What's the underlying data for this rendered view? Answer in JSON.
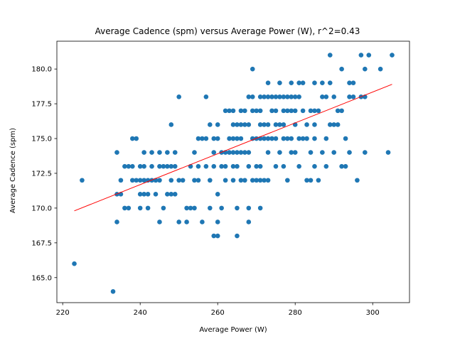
{
  "chart_data": {
    "type": "scatter",
    "title": "Average Cadence (spm) versus Average Power (W), r^2=0.43",
    "xlabel": "Average Power (W)",
    "ylabel": "Average Cadence (spm)",
    "xlim": [
      218.5,
      309.5
    ],
    "ylim": [
      163.2,
      182.0
    ],
    "x_ticks": [
      220,
      240,
      260,
      280,
      300
    ],
    "y_ticks": [
      165.0,
      167.5,
      170.0,
      172.5,
      175.0,
      177.5,
      180.0
    ],
    "x_tick_labels": [
      "220",
      "240",
      "260",
      "280",
      "300"
    ],
    "y_tick_labels": [
      "165.0",
      "167.5",
      "170.0",
      "172.5",
      "175.0",
      "177.5",
      "180.0"
    ],
    "grid": false,
    "legend": "none",
    "colors": {
      "points": "#1f77b4",
      "fit": "#ff0000"
    },
    "fit_line": {
      "x": [
        223,
        305
      ],
      "y": [
        169.8,
        178.9
      ]
    },
    "series": [
      {
        "values": [
          [
            223,
            166
          ],
          [
            225,
            172
          ],
          [
            233,
            164
          ],
          [
            234,
            174
          ],
          [
            234,
            171
          ],
          [
            234,
            169
          ],
          [
            235,
            171
          ],
          [
            235,
            172
          ],
          [
            236,
            173
          ],
          [
            236,
            170
          ],
          [
            237,
            170
          ],
          [
            237,
            173
          ],
          [
            238,
            175
          ],
          [
            238,
            173
          ],
          [
            238,
            172
          ],
          [
            239,
            175
          ],
          [
            239,
            172
          ],
          [
            240,
            173
          ],
          [
            240,
            172
          ],
          [
            240,
            171
          ],
          [
            240,
            170
          ],
          [
            241,
            174
          ],
          [
            241,
            173
          ],
          [
            241,
            172
          ],
          [
            241,
            171
          ],
          [
            242,
            172
          ],
          [
            242,
            170
          ],
          [
            242,
            171
          ],
          [
            243,
            174
          ],
          [
            243,
            173
          ],
          [
            243,
            172
          ],
          [
            244,
            172
          ],
          [
            244,
            171
          ],
          [
            244,
            172
          ],
          [
            245,
            174
          ],
          [
            245,
            173
          ],
          [
            245,
            172
          ],
          [
            245,
            169
          ],
          [
            246,
            173
          ],
          [
            246,
            170
          ],
          [
            247,
            174
          ],
          [
            247,
            173
          ],
          [
            247,
            171
          ],
          [
            248,
            176
          ],
          [
            248,
            173
          ],
          [
            248,
            172
          ],
          [
            248,
            171
          ],
          [
            249,
            174
          ],
          [
            249,
            173
          ],
          [
            249,
            171
          ],
          [
            250,
            178
          ],
          [
            250,
            172
          ],
          [
            250,
            169
          ],
          [
            251,
            172
          ],
          [
            252,
            169
          ],
          [
            252,
            170
          ],
          [
            253,
            170
          ],
          [
            253,
            173
          ],
          [
            254,
            174
          ],
          [
            254,
            172
          ],
          [
            254,
            170
          ],
          [
            255,
            173
          ],
          [
            255,
            172
          ],
          [
            255,
            175
          ],
          [
            256,
            169
          ],
          [
            256,
            175
          ],
          [
            257,
            178
          ],
          [
            257,
            173
          ],
          [
            257,
            175
          ],
          [
            258,
            176
          ],
          [
            258,
            172
          ],
          [
            258,
            170
          ],
          [
            259,
            168
          ],
          [
            259,
            175
          ],
          [
            259,
            174
          ],
          [
            259,
            173
          ],
          [
            260,
            168
          ],
          [
            260,
            171
          ],
          [
            260,
            169
          ],
          [
            260,
            176
          ],
          [
            260,
            175
          ],
          [
            261,
            174
          ],
          [
            261,
            173
          ],
          [
            261,
            170
          ],
          [
            262,
            177
          ],
          [
            262,
            174
          ],
          [
            262,
            173
          ],
          [
            262,
            172
          ],
          [
            263,
            177
          ],
          [
            263,
            174
          ],
          [
            263,
            175
          ],
          [
            264,
            177
          ],
          [
            264,
            176
          ],
          [
            264,
            175
          ],
          [
            264,
            174
          ],
          [
            264,
            173
          ],
          [
            264,
            172
          ],
          [
            265,
            176
          ],
          [
            265,
            175
          ],
          [
            265,
            174
          ],
          [
            265,
            173
          ],
          [
            265,
            170
          ],
          [
            265,
            168
          ],
          [
            266,
            177
          ],
          [
            266,
            176
          ],
          [
            266,
            175
          ],
          [
            266,
            174
          ],
          [
            266,
            172
          ],
          [
            267,
            177
          ],
          [
            267,
            176
          ],
          [
            267,
            174
          ],
          [
            267,
            172
          ],
          [
            268,
            178
          ],
          [
            268,
            176
          ],
          [
            268,
            174
          ],
          [
            268,
            173
          ],
          [
            268,
            170
          ],
          [
            268,
            169
          ],
          [
            269,
            180
          ],
          [
            269,
            178
          ],
          [
            269,
            177
          ],
          [
            269,
            175
          ],
          [
            269,
            172
          ],
          [
            270,
            177
          ],
          [
            270,
            175
          ],
          [
            270,
            173
          ],
          [
            270,
            172
          ],
          [
            271,
            178
          ],
          [
            271,
            177
          ],
          [
            271,
            176
          ],
          [
            271,
            175
          ],
          [
            271,
            173
          ],
          [
            271,
            172
          ],
          [
            271,
            170
          ],
          [
            272,
            178
          ],
          [
            272,
            176
          ],
          [
            272,
            175
          ],
          [
            272,
            172
          ],
          [
            273,
            179
          ],
          [
            273,
            178
          ],
          [
            273,
            176
          ],
          [
            273,
            175
          ],
          [
            273,
            174
          ],
          [
            273,
            172
          ],
          [
            274,
            178
          ],
          [
            274,
            177
          ],
          [
            274,
            175
          ],
          [
            275,
            178
          ],
          [
            275,
            177
          ],
          [
            275,
            176
          ],
          [
            275,
            175
          ],
          [
            275,
            173
          ],
          [
            276,
            179
          ],
          [
            276,
            178
          ],
          [
            276,
            176
          ],
          [
            276,
            174
          ],
          [
            277,
            178
          ],
          [
            277,
            177
          ],
          [
            277,
            176
          ],
          [
            277,
            175
          ],
          [
            277,
            173
          ],
          [
            278,
            178
          ],
          [
            278,
            177
          ],
          [
            278,
            175
          ],
          [
            278,
            172
          ],
          [
            279,
            179
          ],
          [
            279,
            178
          ],
          [
            279,
            177
          ],
          [
            279,
            175
          ],
          [
            279,
            174
          ],
          [
            280,
            178
          ],
          [
            280,
            177
          ],
          [
            280,
            176
          ],
          [
            280,
            174
          ],
          [
            281,
            179
          ],
          [
            281,
            178
          ],
          [
            281,
            175
          ],
          [
            281,
            173
          ],
          [
            282,
            179
          ],
          [
            282,
            177
          ],
          [
            282,
            175
          ],
          [
            283,
            176
          ],
          [
            283,
            175
          ],
          [
            283,
            172
          ],
          [
            284,
            177
          ],
          [
            284,
            174
          ],
          [
            284,
            172
          ],
          [
            285,
            179
          ],
          [
            285,
            177
          ],
          [
            285,
            176
          ],
          [
            285,
            175
          ],
          [
            285,
            173
          ],
          [
            286,
            177
          ],
          [
            286,
            172
          ],
          [
            287,
            179
          ],
          [
            287,
            178
          ],
          [
            287,
            174
          ],
          [
            288,
            178
          ],
          [
            288,
            175
          ],
          [
            288,
            173
          ],
          [
            289,
            181
          ],
          [
            289,
            179
          ],
          [
            289,
            176
          ],
          [
            290,
            178
          ],
          [
            290,
            176
          ],
          [
            290,
            174
          ],
          [
            291,
            177
          ],
          [
            291,
            176
          ],
          [
            292,
            180
          ],
          [
            292,
            177
          ],
          [
            292,
            173
          ],
          [
            293,
            175
          ],
          [
            293,
            173
          ],
          [
            294,
            179
          ],
          [
            294,
            178
          ],
          [
            294,
            174
          ],
          [
            295,
            179
          ],
          [
            295,
            178
          ],
          [
            296,
            172
          ],
          [
            297,
            181
          ],
          [
            297,
            178
          ],
          [
            298,
            180
          ],
          [
            298,
            178
          ],
          [
            298,
            174
          ],
          [
            299,
            181
          ],
          [
            302,
            180
          ],
          [
            304,
            174
          ],
          [
            305,
            181
          ]
        ]
      }
    ]
  }
}
